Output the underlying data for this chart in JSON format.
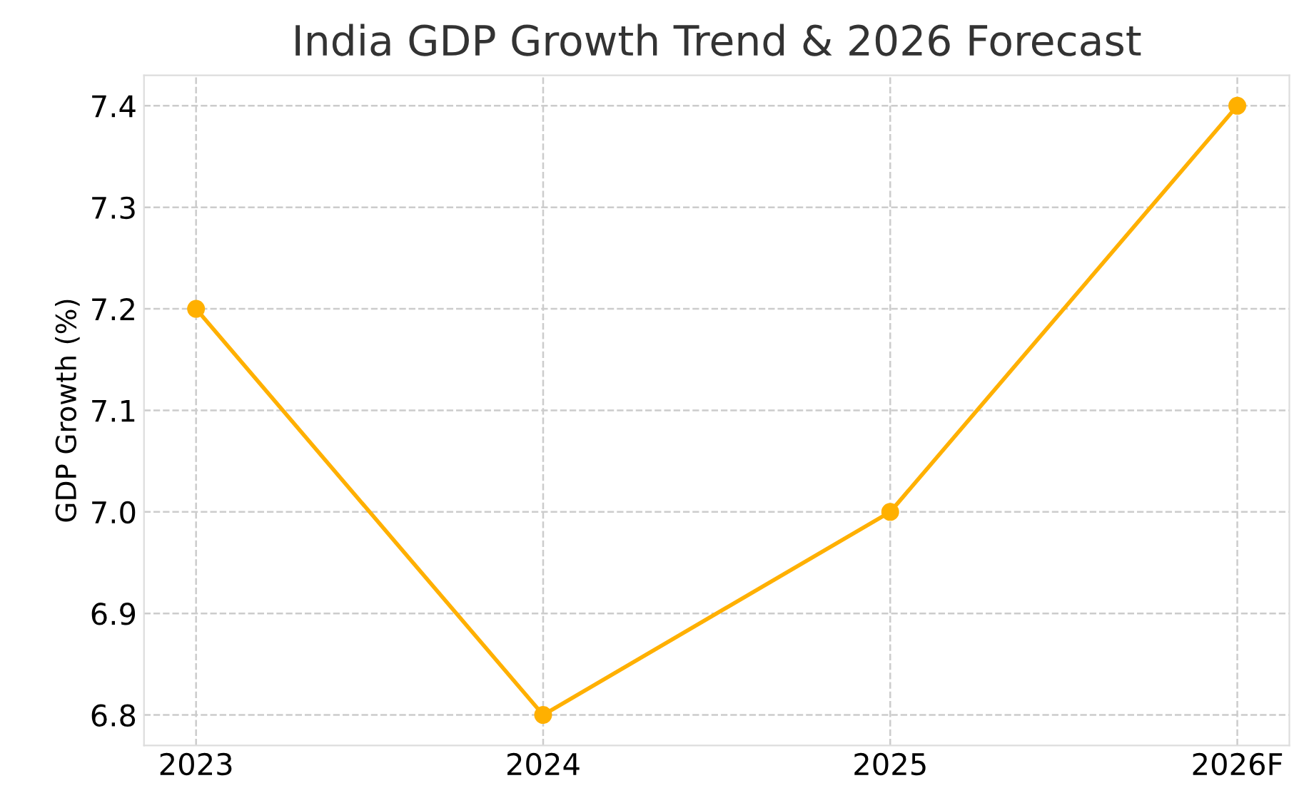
{
  "chart_data": {
    "type": "line",
    "title": "India GDP Growth Trend & 2026 Forecast",
    "ylabel": "GDP Growth (%)",
    "categories": [
      "2023",
      "2024",
      "2025",
      "2026F"
    ],
    "series": [
      {
        "color": "#ffb000",
        "values": [
          7.2,
          6.8,
          7.0,
          7.4
        ]
      }
    ],
    "ylim": [
      6.77,
      7.43
    ],
    "yticks": [
      {
        "value": 6.8,
        "label": "6.8"
      },
      {
        "value": 6.9,
        "label": "6.9"
      },
      {
        "value": 7.0,
        "label": "7.0"
      },
      {
        "value": 7.1,
        "label": "7.1"
      },
      {
        "value": 7.2,
        "label": "7.2"
      },
      {
        "value": 7.3,
        "label": "7.3"
      },
      {
        "value": 7.4,
        "label": "7.4"
      }
    ],
    "grid": true,
    "marker": "circle",
    "line_style": "solid"
  }
}
